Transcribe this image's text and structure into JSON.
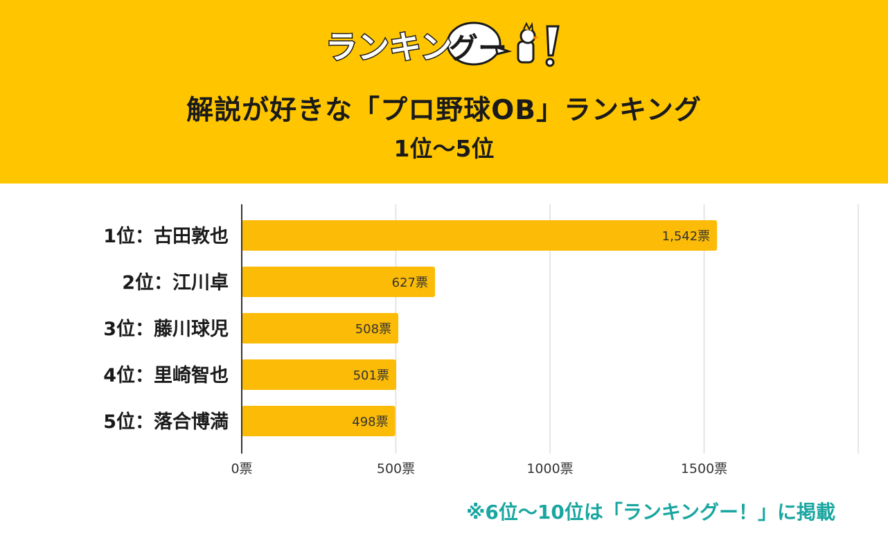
{
  "header": {
    "logo_text": "ランキングー！",
    "title": "解説が好きな「プロ野球OB」ランキング",
    "subtitle": "1位～5位"
  },
  "colors": {
    "header_bg": "#ffc600",
    "bar": "#fbbb07",
    "note": "#1aa6a0",
    "grid": "#dddddd"
  },
  "chart_data": {
    "type": "bar",
    "orientation": "horizontal",
    "title": "解説が好きな「プロ野球OB」ランキング",
    "subtitle": "1位～5位",
    "categories": [
      "1位：古田敦也",
      "2位：江川卓",
      "3位：藤川球児",
      "4位：里崎智也",
      "5位：落合博満"
    ],
    "values": [
      1542,
      627,
      508,
      501,
      498
    ],
    "value_labels": [
      "1,542票",
      "627票",
      "508票",
      "501票",
      "498票"
    ],
    "x_ticks": [
      0,
      500,
      1000,
      1500
    ],
    "x_tick_labels": [
      "0票",
      "500票",
      "1000票",
      "1500票"
    ],
    "xlim": [
      0,
      2000
    ],
    "grid": true,
    "legend": "none"
  },
  "footer": {
    "note": "※6位～10位は「ランキングー！」に掲載"
  }
}
